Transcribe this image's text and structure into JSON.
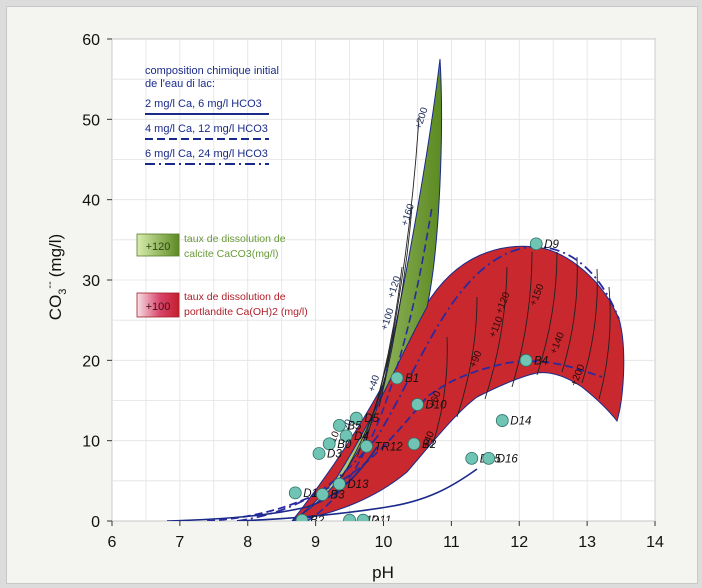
{
  "chart_data": {
    "type": "scatter",
    "title": "",
    "xlabel": "pH",
    "ylabel": "CO3-- (mg/l)",
    "ylabel_main": "CO",
    "ylabel_sub": "3",
    "ylabel_sup": "--",
    "ylabel_unit": "(mg/l)",
    "xlim": [
      6,
      14
    ],
    "ylim": [
      0,
      60
    ],
    "xticks": [
      "6",
      "7",
      "8",
      "9",
      "10",
      "11",
      "12",
      "13",
      "14"
    ],
    "yticks": [
      "0",
      "10",
      "20",
      "30",
      "40",
      "50",
      "60"
    ],
    "grid": true,
    "legend": {
      "title_line1": "composition chimique initial",
      "title_line2": "de l'eau di lac:",
      "entries": [
        {
          "label": "2 mg/l Ca, 6 mg/l HCO3",
          "style": "solid"
        },
        {
          "label": "4 mg/l Ca, 12 mg/l HCO3",
          "style": "dash"
        },
        {
          "label": "6 mg/l Ca, 24 mg/l HCO3",
          "style": "dashdot"
        }
      ]
    },
    "regions": [
      {
        "name": "calcite",
        "sample": "+120",
        "label_line1": "taux de dissolution de",
        "label_line2": "calcite CaCO3(mg/l)",
        "color": "#6f9a2c"
      },
      {
        "name": "portlandite",
        "sample": "+100",
        "label_line1": "taux de dissolution de",
        "label_line2": "portlandite Ca(OH)2 (mg/l)",
        "color": "#c8282e"
      }
    ],
    "calcite_contours": [
      {
        "label": "+20",
        "x": 9.5,
        "y": 11.5
      },
      {
        "label": "+40",
        "x": 9.9,
        "y": 17
      },
      {
        "label": "+100",
        "x": 10.1,
        "y": 25
      },
      {
        "label": "+120",
        "x": 10.2,
        "y": 29
      },
      {
        "label": "+160",
        "x": 10.4,
        "y": 38
      },
      {
        "label": "+200",
        "x": 10.6,
        "y": 50
      }
    ],
    "portlandite_contours": [
      {
        "label": "+10",
        "x": 9.3,
        "y": 10
      },
      {
        "label": "+40",
        "x": 10.7,
        "y": 10
      },
      {
        "label": "+60",
        "x": 10.8,
        "y": 15
      },
      {
        "label": "+90",
        "x": 11.4,
        "y": 20
      },
      {
        "label": "+110",
        "x": 11.7,
        "y": 24
      },
      {
        "label": "+120",
        "x": 11.8,
        "y": 27
      },
      {
        "label": "+150",
        "x": 12.3,
        "y": 28
      },
      {
        "label": "+140",
        "x": 12.6,
        "y": 22
      },
      {
        "label": "+200",
        "x": 12.9,
        "y": 18
      }
    ],
    "series": [
      {
        "name": "samples",
        "points": [
          {
            "label": "D9",
            "x": 12.25,
            "y": 34.5
          },
          {
            "label": "B4",
            "x": 12.1,
            "y": 20
          },
          {
            "label": "B1",
            "x": 10.2,
            "y": 17.8
          },
          {
            "label": "D10",
            "x": 10.5,
            "y": 14.5
          },
          {
            "label": "D14",
            "x": 11.75,
            "y": 12.5
          },
          {
            "label": "D15",
            "x": 11.3,
            "y": 7.8
          },
          {
            "label": "D16",
            "x": 11.55,
            "y": 7.8
          },
          {
            "label": "B2",
            "x": 10.45,
            "y": 9.6
          },
          {
            "label": "TR12",
            "x": 9.75,
            "y": 9.3
          },
          {
            "label": "D5",
            "x": 9.6,
            "y": 12.8
          },
          {
            "label": "B5",
            "x": 9.35,
            "y": 11.9
          },
          {
            "label": "D4",
            "x": 9.45,
            "y": 10.6
          },
          {
            "label": "B0",
            "x": 9.2,
            "y": 9.6
          },
          {
            "label": "D3",
            "x": 9.05,
            "y": 8.4
          },
          {
            "label": "D13",
            "x": 9.35,
            "y": 4.6
          },
          {
            "label": "D1",
            "x": 8.7,
            "y": 3.5
          },
          {
            "label": "B3",
            "x": 9.1,
            "y": 3.3
          },
          {
            "label": "B2",
            "x": 8.8,
            "y": 0.1
          },
          {
            "label": "D12",
            "x": 9.5,
            "y": 0.1
          },
          {
            "label": "D11",
            "x": 9.7,
            "y": 0.1
          }
        ]
      }
    ]
  }
}
